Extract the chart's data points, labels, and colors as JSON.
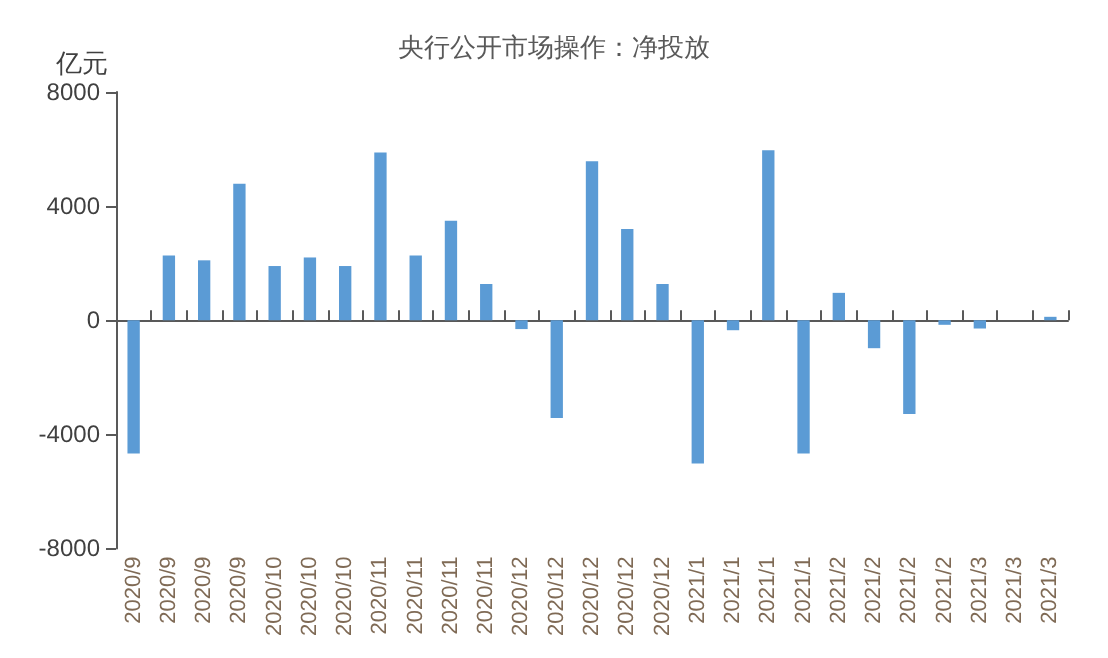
{
  "chart_data": {
    "type": "bar",
    "title": "央行公开市场操作：净投放",
    "ylabel": "亿元",
    "categories": [
      "2020/9",
      "2020/9",
      "2020/9",
      "2020/9",
      "2020/10",
      "2020/10",
      "2020/10",
      "2020/11",
      "2020/11",
      "2020/11",
      "2020/11",
      "2020/12",
      "2020/12",
      "2020/12",
      "2020/12",
      "2020/12",
      "2021/1",
      "2021/1",
      "2021/1",
      "2021/1",
      "2021/2",
      "2021/2",
      "2021/2",
      "2021/2",
      "2021/3",
      "2021/3",
      "2021/3"
    ],
    "values": [
      -4670,
      2270,
      2100,
      4780,
      1900,
      2200,
      1900,
      5880,
      2270,
      3490,
      1270,
      -310,
      -3430,
      5570,
      3200,
      1270,
      -5020,
      -350,
      5960,
      -4670,
      960,
      -980,
      -3290,
      -160,
      -290,
      0,
      120
    ],
    "color": "#5b9bd5",
    "ylim": [
      -8000,
      8000
    ],
    "yticks": [
      -8000,
      -4000,
      0,
      4000,
      8000
    ]
  }
}
